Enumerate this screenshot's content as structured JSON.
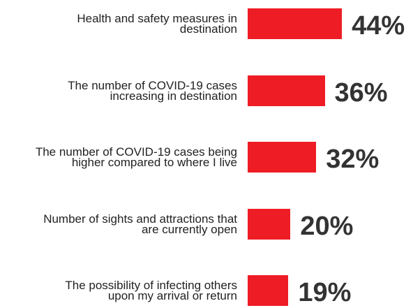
{
  "chart_data": {
    "type": "bar",
    "orientation": "horizontal",
    "categories": [
      "Health and safety measures in destination",
      "The number of COVID-19 cases increasing in destination",
      "The number of COVID-19 cases being higher compared to where I live",
      "Number of sights and attractions that are currently open",
      "The possibility of infecting others upon my arrival or return"
    ],
    "values": [
      44,
      36,
      32,
      20,
      19
    ],
    "value_labels": [
      "44%",
      "36%",
      "32%",
      "20%",
      "19%"
    ],
    "color": "#ee1c25"
  }
}
